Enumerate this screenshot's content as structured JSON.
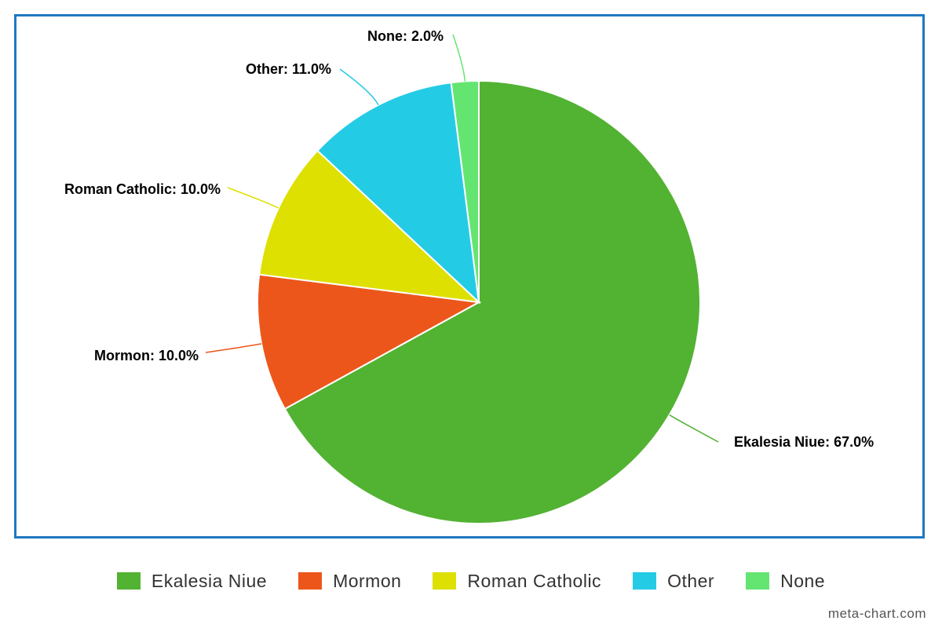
{
  "chart_data": {
    "type": "pie",
    "title": "",
    "legend_position": "bottom",
    "slices": [
      {
        "label": "Ekalesia Niue",
        "value": 67.0,
        "display": "Ekalesia Niue: 67.0%",
        "color": "#52b232"
      },
      {
        "label": "Mormon",
        "value": 10.0,
        "display": "Mormon: 10.0%",
        "color": "#ec561b"
      },
      {
        "label": "Roman Catholic",
        "value": 10.0,
        "display": "Roman Catholic: 10.0%",
        "color": "#dde000"
      },
      {
        "label": "Other",
        "value": 11.0,
        "display": "Other: 11.0%",
        "color": "#24cbe5"
      },
      {
        "label": "None",
        "value": 2.0,
        "display": "None: 2.0%",
        "color": "#64e572"
      }
    ]
  },
  "colors": {
    "frame_border": "#1f78c1"
  },
  "watermark": "meta-chart.com"
}
